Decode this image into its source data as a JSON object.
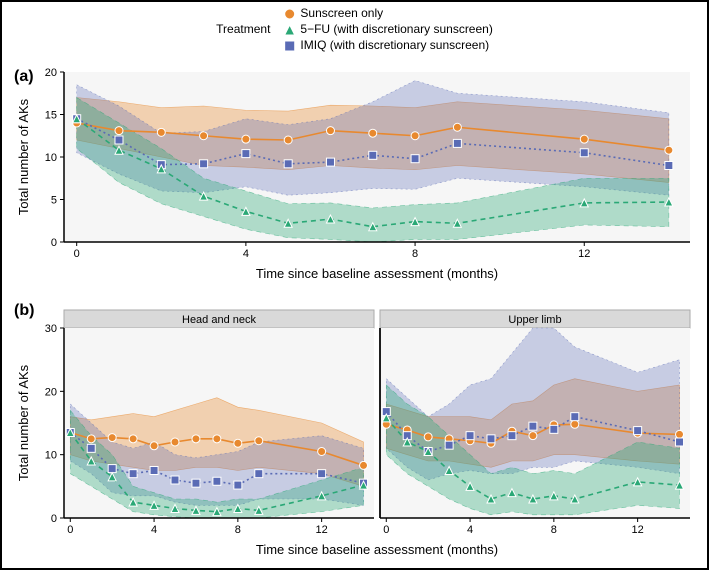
{
  "legend": {
    "title": "Treatment",
    "items": [
      {
        "label": "Sunscreen only",
        "color": "#e8892f",
        "marker": "circle"
      },
      {
        "label": "5−FU (with discretionary sunscreen)",
        "color": "#2aa876",
        "marker": "triangle"
      },
      {
        "label": "IMIQ (with discretionary sunscreen)",
        "color": "#5a6bb5",
        "marker": "square"
      }
    ]
  },
  "panels": {
    "a": {
      "label": "(a)",
      "ylabel": "Total number of AKs",
      "xlabel": "Time since baseline assessment (months)",
      "xlim": [
        -0.3,
        14.5
      ],
      "ylim": [
        0,
        20
      ],
      "yticks": [
        0,
        5,
        10,
        15,
        20
      ],
      "xticks": [
        0,
        4,
        8,
        12
      ],
      "background": "#f6f6f6",
      "series": [
        {
          "color": "#e8892f",
          "marker": "circle",
          "dash": "none",
          "fill_opacity": 0.35,
          "x": [
            0,
            1,
            2,
            3,
            4,
            5,
            6,
            7,
            8,
            9,
            12,
            14
          ],
          "y": [
            14.0,
            13.1,
            12.9,
            12.5,
            12.1,
            12.0,
            13.1,
            12.8,
            12.5,
            13.5,
            12.1,
            10.8
          ],
          "lower": [
            12.0,
            11.0,
            10.0,
            9.0,
            8.8,
            8.5,
            9.0,
            8.7,
            8.5,
            9.0,
            8.0,
            7.0
          ],
          "upper": [
            17.0,
            16.5,
            15.8,
            16.0,
            15.5,
            15.4,
            16.1,
            16.0,
            15.8,
            16.5,
            15.5,
            14.5
          ]
        },
        {
          "color": "#5a6bb5",
          "marker": "square",
          "dash": "2,3",
          "fill_opacity": 0.3,
          "x": [
            0,
            1,
            2,
            3,
            4,
            5,
            6,
            7,
            8,
            9,
            12,
            14
          ],
          "y": [
            14.5,
            12.0,
            9.1,
            9.2,
            10.4,
            9.2,
            9.4,
            10.2,
            9.8,
            11.6,
            10.5,
            9.0
          ],
          "lower": [
            10.5,
            8.0,
            6.0,
            5.8,
            6.5,
            5.5,
            5.8,
            6.3,
            6.2,
            7.5,
            6.5,
            5.5
          ],
          "upper": [
            18.5,
            16.0,
            12.8,
            13.0,
            14.5,
            13.8,
            14.5,
            16.5,
            19.0,
            17.5,
            16.5,
            15.2
          ]
        },
        {
          "color": "#2aa876",
          "marker": "triangle",
          "dash": "5,4",
          "fill_opacity": 0.35,
          "x": [
            0,
            1,
            2,
            3,
            4,
            5,
            6,
            7,
            8,
            9,
            12,
            14
          ],
          "y": [
            14.5,
            10.8,
            8.6,
            5.4,
            3.6,
            2.2,
            2.7,
            1.8,
            2.4,
            2.2,
            4.6,
            4.7
          ],
          "lower": [
            11.0,
            7.0,
            4.5,
            3.0,
            1.5,
            0.5,
            0.3,
            0.0,
            0.3,
            0.3,
            2.0,
            1.8
          ],
          "upper": [
            17.0,
            14.0,
            11.0,
            7.5,
            6.0,
            4.5,
            4.6,
            4.0,
            4.4,
            4.6,
            7.5,
            7.5
          ]
        }
      ]
    },
    "b": {
      "label": "(b)",
      "ylabel": "Total number of AKs",
      "xlabel": "Time since baseline assessment (months)",
      "xlim": [
        -0.3,
        14.5
      ],
      "ylim": [
        0,
        30
      ],
      "yticks": [
        0,
        10,
        20,
        30
      ],
      "xticks": [
        0,
        4,
        8,
        12
      ],
      "background": "#f6f6f6",
      "facets": [
        {
          "title": "Head and neck",
          "series": [
            {
              "color": "#e8892f",
              "marker": "circle",
              "dash": "none",
              "fill_opacity": 0.35,
              "x": [
                0,
                1,
                2,
                3,
                4,
                5,
                6,
                7,
                8,
                9,
                12,
                14
              ],
              "y": [
                13.5,
                12.5,
                12.7,
                12.5,
                11.4,
                12.0,
                12.5,
                12.5,
                11.8,
                12.2,
                10.5,
                8.3
              ],
              "lower": [
                10,
                9,
                8.5,
                8,
                7.5,
                7.5,
                8,
                8,
                7.5,
                8,
                7,
                5
              ],
              "upper": [
                16,
                15.5,
                16,
                16.5,
                16,
                17,
                18,
                19,
                17.5,
                17,
                15,
                12
              ]
            },
            {
              "color": "#5a6bb5",
              "marker": "square",
              "dash": "2,3",
              "fill_opacity": 0.3,
              "x": [
                0,
                1,
                2,
                3,
                4,
                5,
                6,
                7,
                8,
                9,
                12,
                14
              ],
              "y": [
                13.5,
                11.0,
                7.8,
                7.0,
                7.5,
                6.0,
                5.5,
                5.8,
                5.2,
                7.0,
                7.0,
                5.5
              ],
              "lower": [
                9,
                7,
                4,
                3.5,
                3.5,
                2.5,
                2,
                2,
                2,
                3,
                3,
                2
              ],
              "upper": [
                18,
                15,
                12,
                11,
                12,
                10,
                9.5,
                10,
                10.5,
                12,
                13,
                11
              ]
            },
            {
              "color": "#2aa876",
              "marker": "triangle",
              "dash": "5,4",
              "fill_opacity": 0.35,
              "x": [
                0,
                1,
                2,
                3,
                4,
                5,
                6,
                7,
                8,
                9,
                12,
                14
              ],
              "y": [
                13.5,
                9,
                6.5,
                2.5,
                2.0,
                1.5,
                1.2,
                1.0,
                1.5,
                1.2,
                3.5,
                5.2
              ],
              "lower": [
                7,
                5,
                3,
                1,
                0.5,
                0.2,
                0,
                0,
                0,
                0,
                1,
                2
              ],
              "upper": [
                17,
                13,
                10,
                5,
                4,
                3,
                3,
                2.5,
                3,
                3,
                6,
                8
              ]
            }
          ]
        },
        {
          "title": "Upper limb",
          "series": [
            {
              "color": "#e8892f",
              "marker": "circle",
              "dash": "none",
              "fill_opacity": 0.35,
              "x": [
                0,
                1,
                2,
                3,
                4,
                5,
                6,
                7,
                8,
                9,
                12,
                14
              ],
              "y": [
                14.8,
                13.9,
                12.8,
                12.5,
                12.2,
                11.8,
                13.7,
                13.0,
                14.7,
                14.8,
                13.4,
                13.2
              ],
              "lower": [
                11,
                10,
                9,
                9,
                8.5,
                8,
                9,
                9,
                10,
                10,
                9,
                8.5
              ],
              "upper": [
                18,
                17,
                16,
                16,
                16,
                15.5,
                18,
                18.5,
                21,
                22,
                20,
                21
              ]
            },
            {
              "color": "#5a6bb5",
              "marker": "square",
              "dash": "2,3",
              "fill_opacity": 0.3,
              "x": [
                0,
                1,
                2,
                3,
                4,
                5,
                6,
                7,
                8,
                9,
                12,
                14
              ],
              "y": [
                16.8,
                13.0,
                10.5,
                11.5,
                13.0,
                12.5,
                13.0,
                14.5,
                14.0,
                16.0,
                13.8,
                12.0
              ],
              "lower": [
                11,
                8,
                6,
                7,
                7.5,
                7,
                7,
                8,
                8,
                9,
                8,
                7
              ],
              "upper": [
                22,
                19,
                16,
                18,
                21,
                22,
                26,
                30,
                32,
                27,
                23,
                25
              ]
            },
            {
              "color": "#2aa876",
              "marker": "triangle",
              "dash": "5,4",
              "fill_opacity": 0.35,
              "x": [
                0,
                1,
                2,
                3,
                4,
                5,
                6,
                7,
                8,
                9,
                12,
                14
              ],
              "y": [
                15.8,
                12.0,
                10.5,
                7.5,
                5.0,
                3.0,
                4.0,
                3.0,
                3.5,
                3.0,
                5.7,
                5.2
              ],
              "lower": [
                10,
                7,
                5,
                3,
                1.5,
                0.5,
                1,
                0.5,
                0.5,
                0.5,
                2,
                1.5
              ],
              "upper": [
                21,
                18,
                16,
                13,
                10,
                7,
                8,
                7,
                7.5,
                7,
                12,
                11
              ]
            }
          ]
        }
      ]
    }
  }
}
